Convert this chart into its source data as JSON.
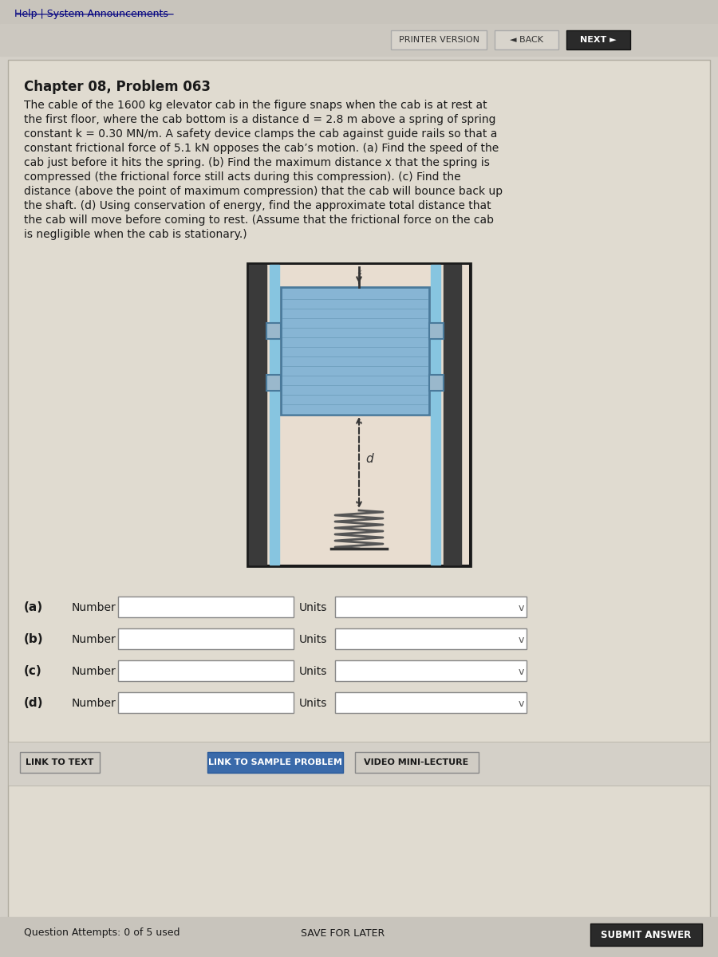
{
  "bg_color": "#d4d0c8",
  "page_bg": "#e8e4dc",
  "header_link_color": "#000080",
  "header_text": "Help | System Announcements",
  "printer_version_text": "PRINTER VERSION",
  "back_text": "◄ BACK",
  "next_text": "NEXT ►",
  "chapter_title": "Chapter 08, Problem 063",
  "problem_text": "The cable of the 1600 kg elevator cab in the figure snaps when the cab is at rest at\nthe first floor, where the cab bottom is a distance d = 2.8 m above a spring of spring\nconstant k = 0.30 MN/m. A safety device clamps the cab against guide rails so that a\nconstant frictional force of 5.1 kN opposes the cab’s motion. (a) Find the speed of the\ncab just before it hits the spring. (b) Find the maximum distance x that the spring is\ncompressed (the frictional force still acts during this compression). (c) Find the\ndistance (above the point of maximum compression) that the cab will bounce back up\nthe shaft. (d) Using conservation of energy, find the approximate total distance that\nthe cab will move before coming to rest. (Assume that the frictional force on the cab\nis negligible when the cab is stationary.)",
  "part_labels": [
    "(a)",
    "(b)",
    "(c)",
    "(d)"
  ],
  "part_number_labels": [
    "Number",
    "Number",
    "Number",
    "Number"
  ],
  "part_units_labels": [
    "Units",
    "Units",
    "Units",
    "Units"
  ],
  "link_buttons": [
    "LINK TO TEXT",
    "LINK TO SAMPLE PROBLEM",
    "VIDEO MINI-LECTURE"
  ],
  "bottom_left": "Question Attempts: 0 of 5 used",
  "bottom_mid": "SAVE FOR LATER",
  "bottom_right": "SUBMIT ANSWER",
  "elevator_color": "#87b5d4",
  "elevator_border": "#4a7a9b",
  "rail_color": "#5a5a5a",
  "rail_dark": "#2a2a2a",
  "spring_color": "#555555",
  "cable_color": "#333333"
}
